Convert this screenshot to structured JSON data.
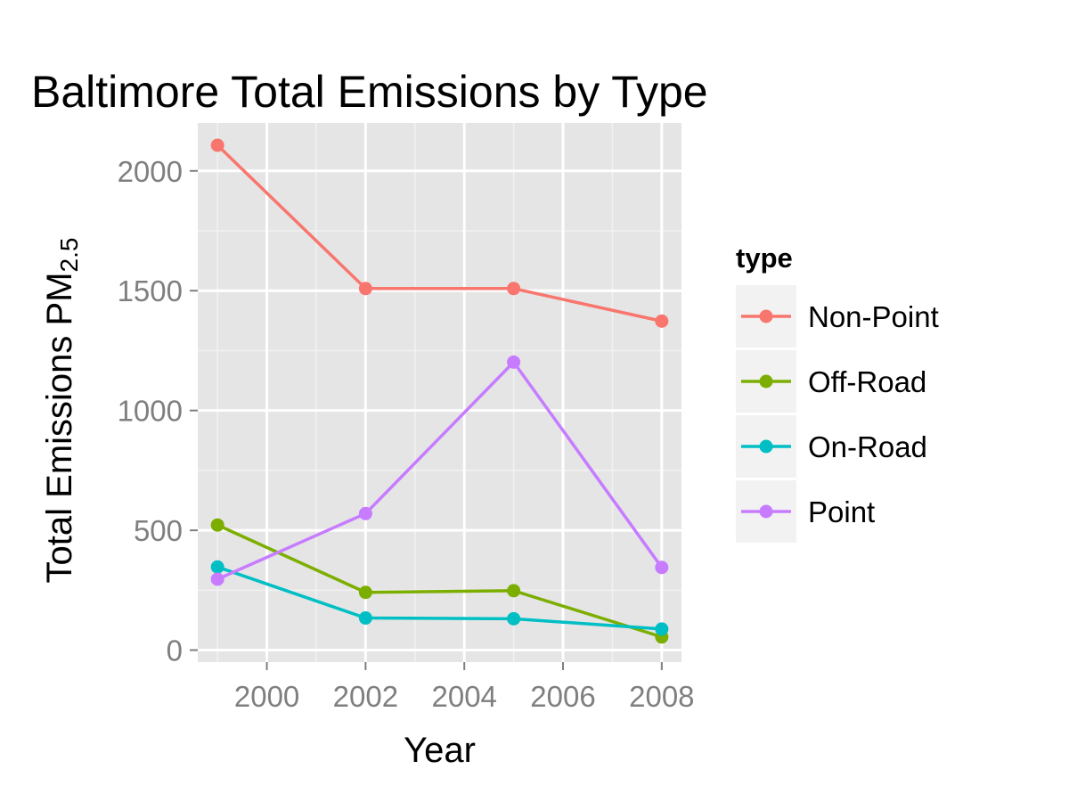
{
  "chart_data": {
    "type": "line",
    "title": "Baltimore Total Emissions by Type",
    "xlabel": "Year",
    "ylabel": "Total Emissions PM",
    "ylabel_subscript": "2.5",
    "x": [
      1999,
      2002,
      2005,
      2008
    ],
    "xlim": [
      1998.6,
      2008.4
    ],
    "ylim": [
      -50,
      2200
    ],
    "x_ticks": [
      2000,
      2002,
      2004,
      2006,
      2008
    ],
    "y_ticks": [
      0,
      500,
      1000,
      1500,
      2000
    ],
    "grid": true,
    "legend": {
      "title": "type",
      "position": "right"
    },
    "series": [
      {
        "name": "Non-Point",
        "color": "#F8766D",
        "values": [
          2107,
          1509,
          1509,
          1373
        ]
      },
      {
        "name": "Off-Road",
        "color": "#7CAE00",
        "values": [
          522,
          241,
          248,
          55
        ]
      },
      {
        "name": "On-Road",
        "color": "#00BFC4",
        "values": [
          347,
          134,
          131,
          88
        ]
      },
      {
        "name": "Point",
        "color": "#C77CFF",
        "values": [
          296,
          570,
          1202,
          345
        ]
      }
    ]
  }
}
